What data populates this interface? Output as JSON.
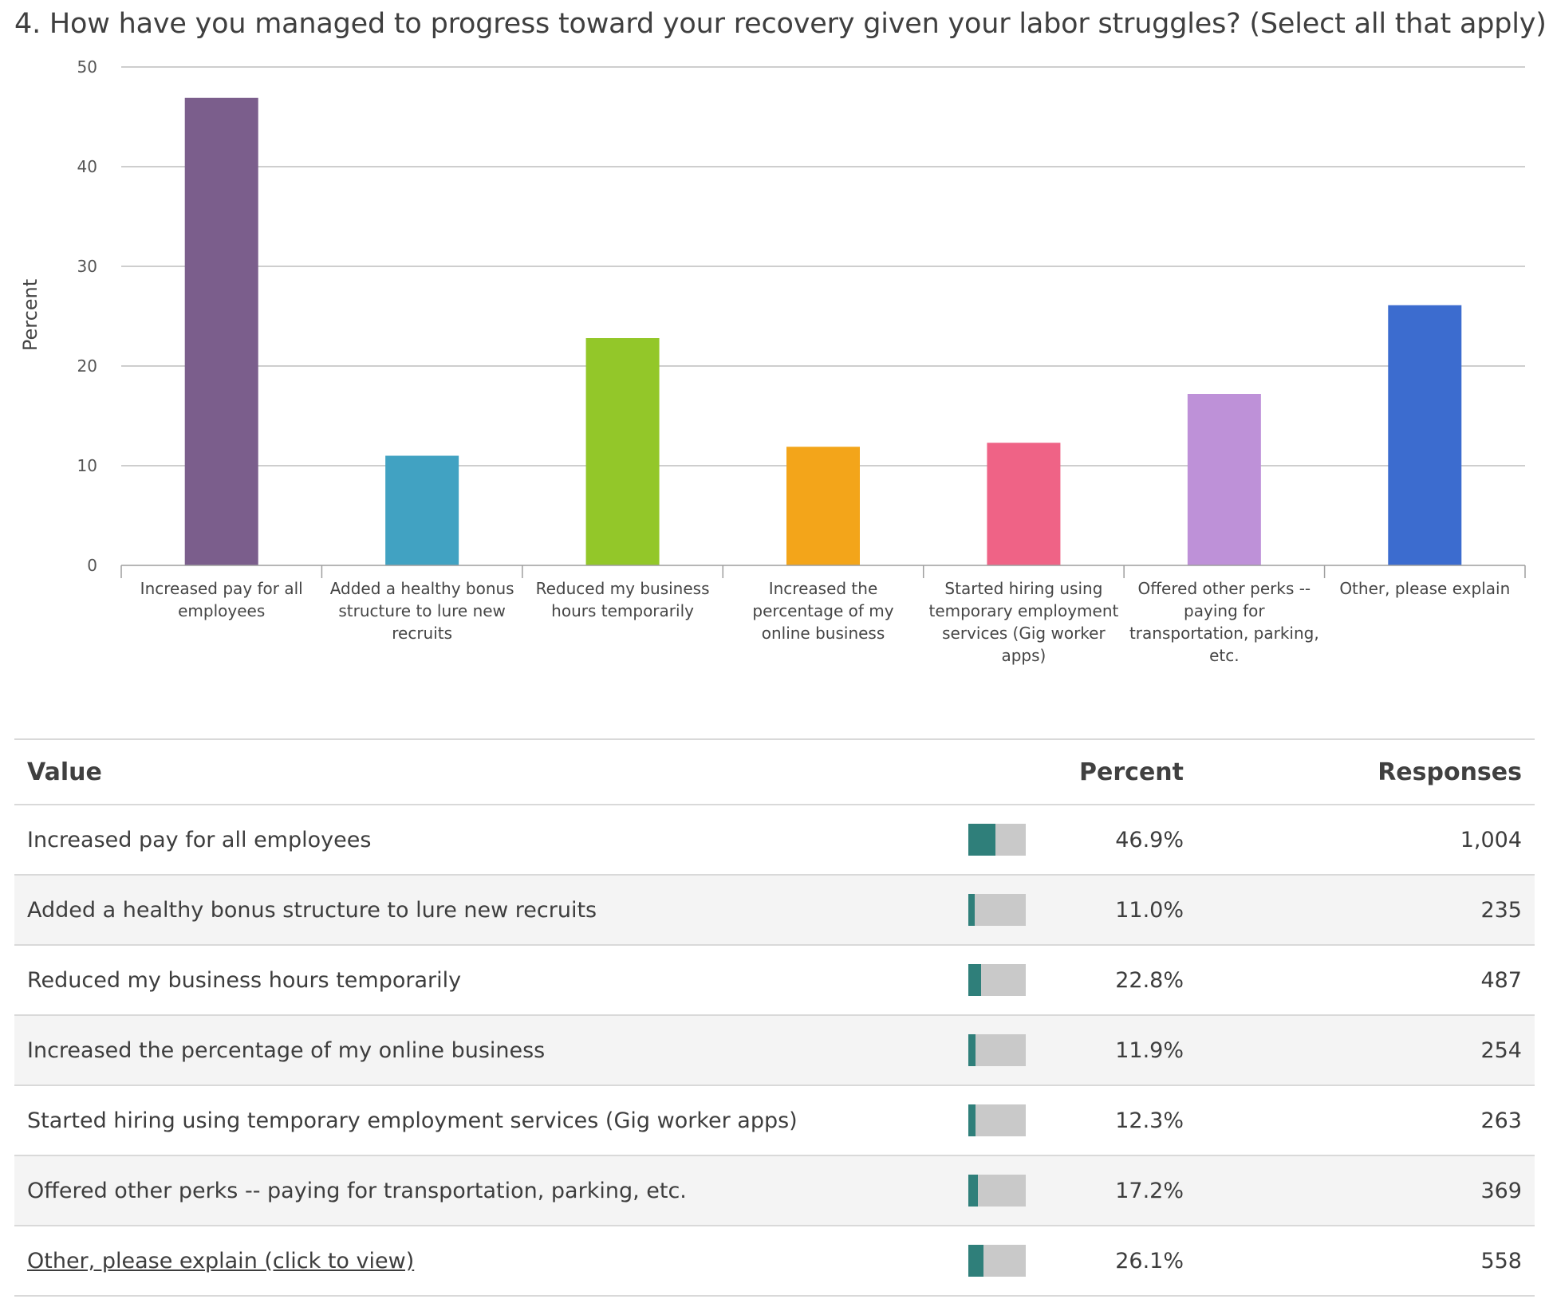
{
  "question": {
    "title": "4. How have you managed to progress toward your recovery given your labor struggles? (Select all that apply)."
  },
  "chart_data": {
    "type": "bar",
    "title": "",
    "xlabel": "",
    "ylabel": "Percent",
    "ylim": [
      0,
      50
    ],
    "yticks": [
      0,
      10,
      20,
      30,
      40,
      50
    ],
    "grid": true,
    "legend": "none",
    "categories": [
      "Increased pay for all employees",
      "Added a healthy bonus structure to lure new recruits",
      "Reduced my business hours temporarily",
      "Increased the percentage of my online business",
      "Started hiring using temporary employment services (Gig worker apps)",
      "Offered other perks -- paying for transportation, parking, etc.",
      "Other, please explain"
    ],
    "values": [
      46.9,
      11.0,
      22.8,
      11.9,
      12.3,
      17.2,
      26.1
    ],
    "colors": [
      "#7b5e8c",
      "#41a2c2",
      "#93c729",
      "#f3a51a",
      "#ef6386",
      "#be91d8",
      "#3c6ccf"
    ]
  },
  "table": {
    "headers": {
      "value": "Value",
      "percent": "Percent",
      "responses": "Responses"
    },
    "bar_fill_color": "#2f7f7a",
    "bar_track_color": "#c9c9c9",
    "rows": [
      {
        "value": "Increased pay for all employees",
        "fraction": 0.469,
        "percent": "46.9%",
        "responses": "1,004"
      },
      {
        "value": "Added a healthy bonus structure to lure new recruits",
        "fraction": 0.11,
        "percent": "11.0%",
        "responses": "235"
      },
      {
        "value": "Reduced my business hours temporarily",
        "fraction": 0.228,
        "percent": "22.8%",
        "responses": "487"
      },
      {
        "value": "Increased the percentage of my online business",
        "fraction": 0.119,
        "percent": "11.9%",
        "responses": "254"
      },
      {
        "value": "Started hiring using temporary employment services (Gig worker apps)",
        "fraction": 0.123,
        "percent": "12.3%",
        "responses": "263"
      },
      {
        "value": "Offered other perks -- paying for transportation, parking, etc.",
        "fraction": 0.172,
        "percent": "17.2%",
        "responses": "369"
      },
      {
        "value": "Other, please explain (click to view)",
        "fraction": 0.261,
        "percent": "26.1%",
        "responses": "558",
        "link": true
      }
    ]
  }
}
